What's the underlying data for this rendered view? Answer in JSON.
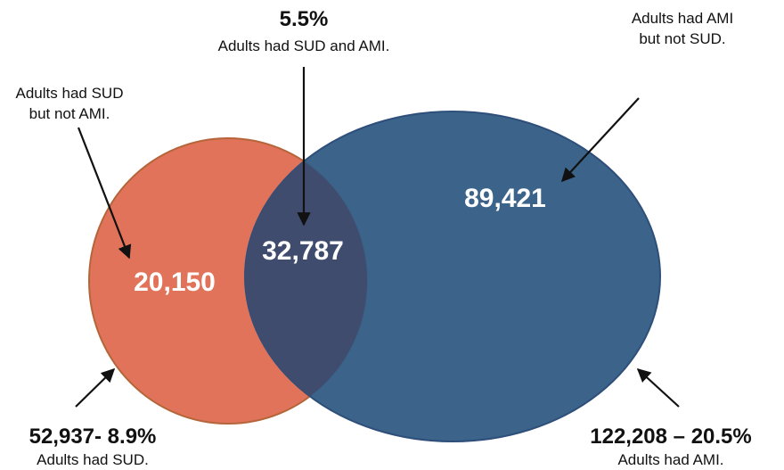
{
  "diagram": {
    "type": "venn",
    "colors": {
      "sud_circle": "#e07359",
      "sud_stroke": "#b5653a",
      "ami_circle": "#365f86",
      "ami_stroke": "#2e4f7a",
      "overlap": "#3f4c6d"
    },
    "regions": {
      "sud_only": "20,150",
      "overlap": "32,787",
      "ami_only": "89,421"
    },
    "labels": {
      "overlap_pct": "5.5%",
      "overlap_desc": "Adults had SUD and AMI.",
      "sud_only_line1": "Adults had SUD",
      "sud_only_line2": "but not AMI.",
      "ami_only_line1": "Adults had AMI",
      "ami_only_line2": "but not SUD.",
      "sud_total": "52,937- 8.9%",
      "sud_total_desc": "Adults had SUD.",
      "ami_total": "122,208 – 20.5%",
      "ami_total_desc": "Adults had AMI."
    }
  }
}
